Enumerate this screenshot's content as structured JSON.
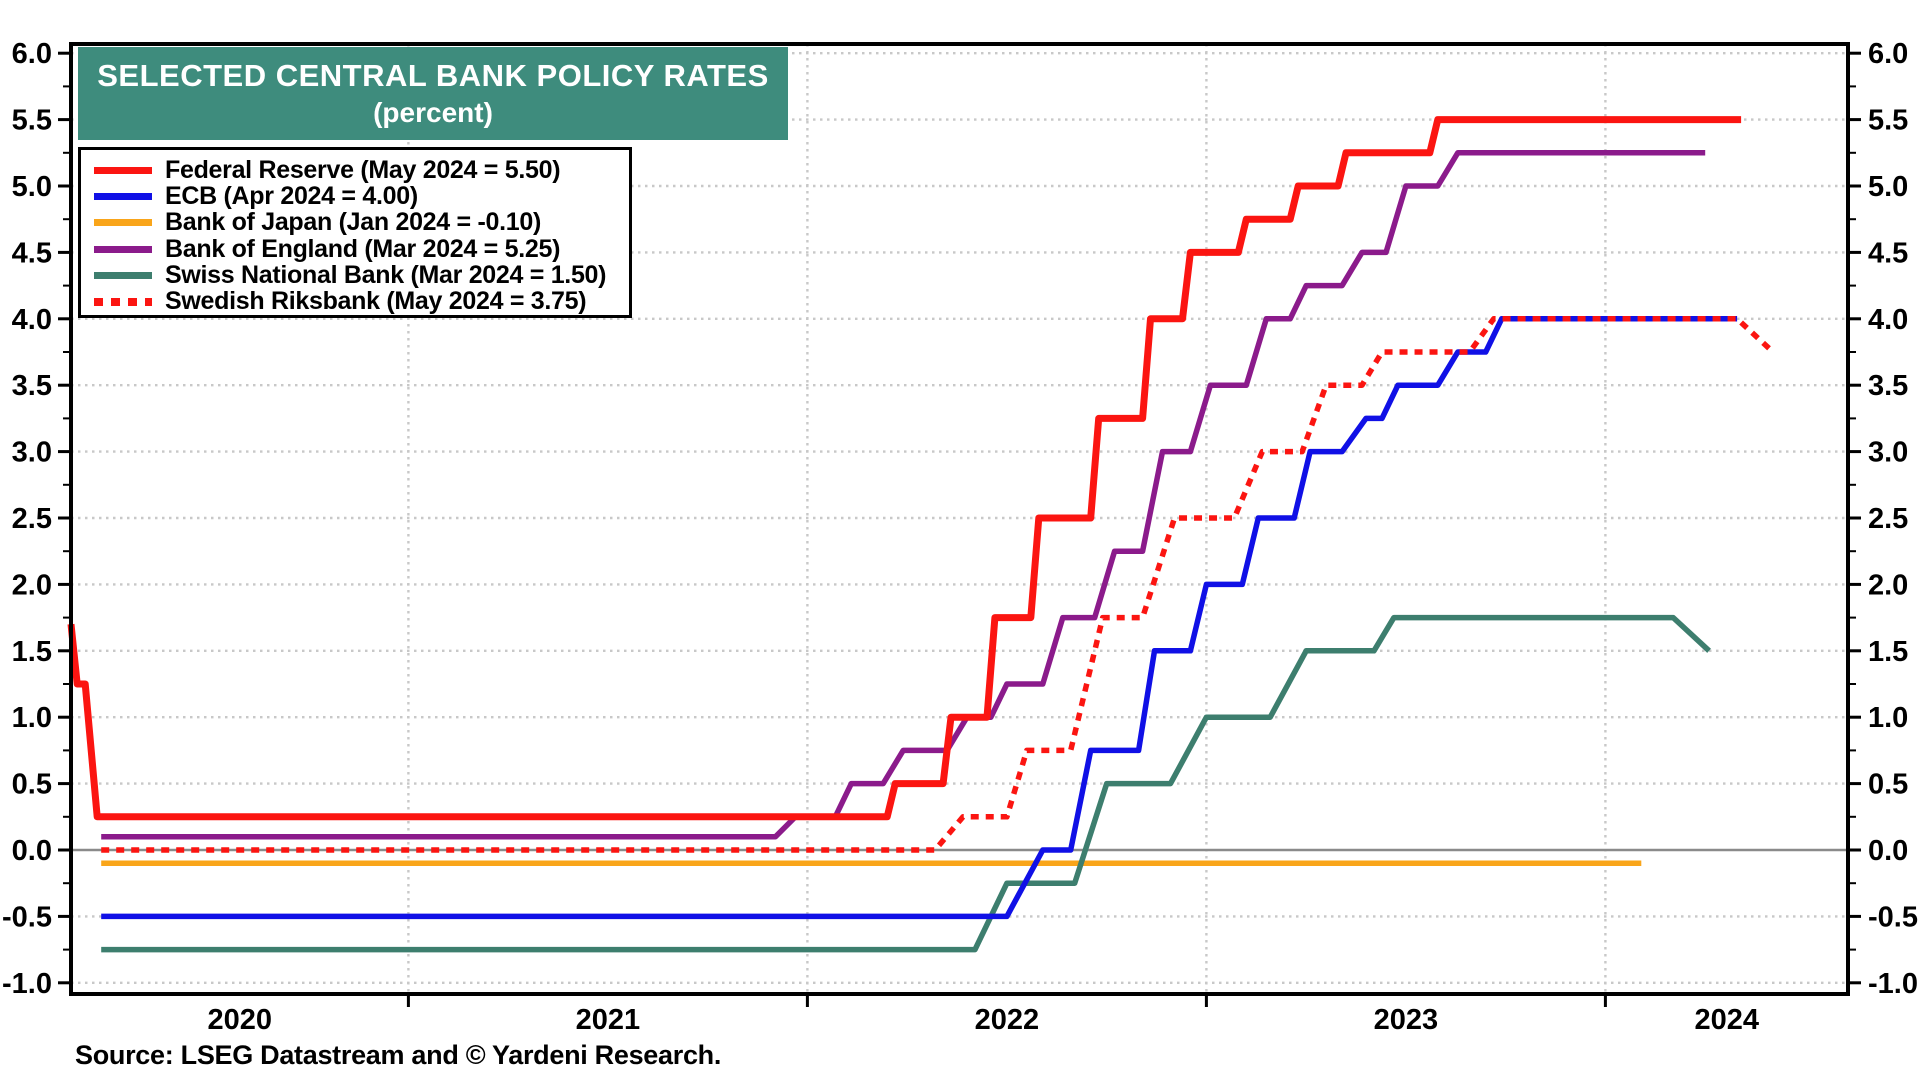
{
  "title_banner": {
    "line1": "SELECTED CENTRAL BANK POLICY RATES",
    "line2": "(percent)",
    "bg_color": "#3E8C7D",
    "text_color": "#FFFFFF"
  },
  "source_text": "Source: LSEG Datastream and © Yardeni Research.",
  "legend": {
    "items": [
      {
        "label": "Federal Reserve (May 2024 = 5.50)",
        "color": "#FB1511",
        "style": "solid"
      },
      {
        "label": "ECB (Apr 2024 = 4.00)",
        "color": "#1010E6",
        "style": "solid"
      },
      {
        "label": "Bank of Japan (Jan 2024 = -0.10)",
        "color": "#F9A51A",
        "style": "solid"
      },
      {
        "label": "Bank of England (Mar 2024 = 5.25)",
        "color": "#8B1B8B",
        "style": "solid"
      },
      {
        "label": "Swiss National Bank (Mar 2024 = 1.50)",
        "color": "#3D7E6E",
        "style": "solid"
      },
      {
        "label": "Swedish Riksbank (May 2024 = 3.75)",
        "color": "#FB1511",
        "style": "dotted"
      }
    ]
  },
  "chart_data": {
    "type": "line",
    "title": "SELECTED CENTRAL BANK POLICY RATES",
    "subtitle": "(percent)",
    "ylabel": "percent",
    "x_axis": {
      "range": [
        2020.15,
        2024.61
      ],
      "year_gridlines": [
        2021,
        2022,
        2023,
        2024
      ],
      "label_years": [
        2020,
        2021,
        2022,
        2023,
        2024
      ],
      "labels": [
        "2020",
        "2021",
        "2022",
        "2023",
        "2024"
      ]
    },
    "y_axis": {
      "min": -1.0,
      "max": 6.0,
      "major_step": 0.5,
      "minor_step": 0.25,
      "sides": [
        "left",
        "right"
      ]
    },
    "grid": {
      "h_dotted_every": 0.5,
      "v_dotted_at_years": true,
      "zero_line": true,
      "dotted_color": "#C8C8C8",
      "zero_color": "#8A8A8A"
    },
    "series": [
      {
        "name": "Bank of Japan",
        "color": "#F9A51A",
        "dash": "none",
        "width": 5.5,
        "points": [
          [
            2020.23,
            -0.1
          ],
          [
            2024.09,
            -0.1
          ]
        ]
      },
      {
        "name": "Swiss National Bank",
        "color": "#3D7E6E",
        "dash": "none",
        "width": 5.5,
        "points": [
          [
            2020.23,
            -0.75
          ],
          [
            2022.42,
            -0.75
          ],
          [
            2022.5,
            -0.25
          ],
          [
            2022.67,
            -0.25
          ],
          [
            2022.75,
            0.5
          ],
          [
            2022.91,
            0.5
          ],
          [
            2023.0,
            1.0
          ],
          [
            2023.16,
            1.0
          ],
          [
            2023.25,
            1.5
          ],
          [
            2023.42,
            1.5
          ],
          [
            2023.47,
            1.75
          ],
          [
            2024.17,
            1.75
          ],
          [
            2024.26,
            1.5
          ]
        ]
      },
      {
        "name": "Bank of England",
        "color": "#8B1B8B",
        "dash": "none",
        "width": 5.5,
        "points": [
          [
            2020.23,
            0.1
          ],
          [
            2021.92,
            0.1
          ],
          [
            2021.97,
            0.25
          ],
          [
            2022.07,
            0.25
          ],
          [
            2022.11,
            0.5
          ],
          [
            2022.19,
            0.5
          ],
          [
            2022.24,
            0.75
          ],
          [
            2022.35,
            0.75
          ],
          [
            2022.4,
            1.0
          ],
          [
            2022.46,
            1.0
          ],
          [
            2022.5,
            1.25
          ],
          [
            2022.59,
            1.25
          ],
          [
            2022.64,
            1.75
          ],
          [
            2022.72,
            1.75
          ],
          [
            2022.77,
            2.25
          ],
          [
            2022.84,
            2.25
          ],
          [
            2022.89,
            3.0
          ],
          [
            2022.96,
            3.0
          ],
          [
            2023.01,
            3.5
          ],
          [
            2023.1,
            3.5
          ],
          [
            2023.15,
            4.0
          ],
          [
            2023.21,
            4.0
          ],
          [
            2023.25,
            4.25
          ],
          [
            2023.34,
            4.25
          ],
          [
            2023.39,
            4.5
          ],
          [
            2023.45,
            4.5
          ],
          [
            2023.5,
            5.0
          ],
          [
            2023.58,
            5.0
          ],
          [
            2023.63,
            5.25
          ],
          [
            2024.25,
            5.25
          ]
        ]
      },
      {
        "name": "ECB",
        "color": "#1010E6",
        "dash": "none",
        "width": 5.5,
        "points": [
          [
            2020.23,
            -0.5
          ],
          [
            2022.5,
            -0.5
          ],
          [
            2022.59,
            0.0
          ],
          [
            2022.66,
            0.0
          ],
          [
            2022.71,
            0.75
          ],
          [
            2022.83,
            0.75
          ],
          [
            2022.87,
            1.5
          ],
          [
            2022.96,
            1.5
          ],
          [
            2023.0,
            2.0
          ],
          [
            2023.09,
            2.0
          ],
          [
            2023.13,
            2.5
          ],
          [
            2023.22,
            2.5
          ],
          [
            2023.26,
            3.0
          ],
          [
            2023.34,
            3.0
          ],
          [
            2023.4,
            3.25
          ],
          [
            2023.44,
            3.25
          ],
          [
            2023.48,
            3.5
          ],
          [
            2023.58,
            3.5
          ],
          [
            2023.63,
            3.75
          ],
          [
            2023.7,
            3.75
          ],
          [
            2023.74,
            4.0
          ],
          [
            2024.33,
            4.0
          ]
        ]
      },
      {
        "name": "Federal Reserve",
        "color": "#FB1511",
        "dash": "none",
        "width": 7,
        "points": [
          [
            2020.15,
            1.7
          ],
          [
            2020.17,
            1.25
          ],
          [
            2020.19,
            1.25
          ],
          [
            2020.22,
            0.25
          ],
          [
            2022.2,
            0.25
          ],
          [
            2022.22,
            0.5
          ],
          [
            2022.34,
            0.5
          ],
          [
            2022.36,
            1.0
          ],
          [
            2022.45,
            1.0
          ],
          [
            2022.47,
            1.75
          ],
          [
            2022.56,
            1.75
          ],
          [
            2022.58,
            2.5
          ],
          [
            2022.71,
            2.5
          ],
          [
            2022.73,
            3.25
          ],
          [
            2022.84,
            3.25
          ],
          [
            2022.86,
            4.0
          ],
          [
            2022.94,
            4.0
          ],
          [
            2022.96,
            4.5
          ],
          [
            2023.08,
            4.5
          ],
          [
            2023.1,
            4.75
          ],
          [
            2023.21,
            4.75
          ],
          [
            2023.23,
            5.0
          ],
          [
            2023.33,
            5.0
          ],
          [
            2023.35,
            5.25
          ],
          [
            2023.56,
            5.25
          ],
          [
            2023.58,
            5.5
          ],
          [
            2024.34,
            5.5
          ]
        ]
      },
      {
        "name": "Swedish Riksbank",
        "color": "#FB1511",
        "dash": "8 7",
        "width": 5.5,
        "points": [
          [
            2020.23,
            0.0
          ],
          [
            2022.32,
            0.0
          ],
          [
            2022.39,
            0.25
          ],
          [
            2022.5,
            0.25
          ],
          [
            2022.55,
            0.75
          ],
          [
            2022.66,
            0.75
          ],
          [
            2022.74,
            1.75
          ],
          [
            2022.84,
            1.75
          ],
          [
            2022.92,
            2.5
          ],
          [
            2023.07,
            2.5
          ],
          [
            2023.14,
            3.0
          ],
          [
            2023.24,
            3.0
          ],
          [
            2023.3,
            3.5
          ],
          [
            2023.39,
            3.5
          ],
          [
            2023.44,
            3.75
          ],
          [
            2023.66,
            3.75
          ],
          [
            2023.72,
            4.0
          ],
          [
            2024.33,
            4.0
          ],
          [
            2024.42,
            3.75
          ]
        ]
      }
    ]
  }
}
